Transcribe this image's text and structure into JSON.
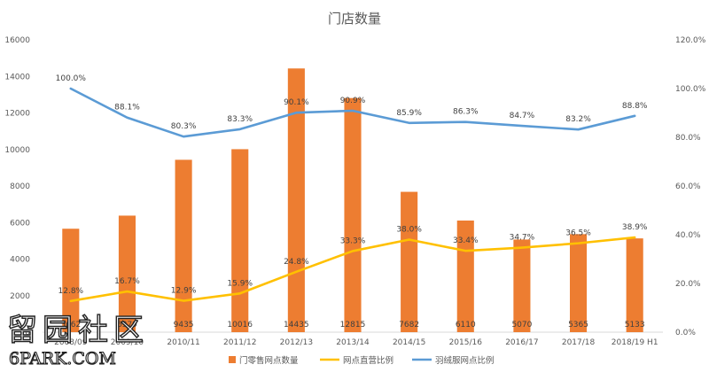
{
  "chart_data": {
    "type": "bar",
    "title": "门店数量",
    "categories": [
      "2008/09",
      "2009/10",
      "2010/11",
      "2011/12",
      "2012/13",
      "2013/14",
      "2014/15",
      "2015/16",
      "2016/17",
      "2017/18",
      "2018/19 H1"
    ],
    "ylim": [
      0,
      16000
    ],
    "y2lim": [
      0,
      1.2
    ],
    "y_ticks": [
      "0",
      "2000",
      "4000",
      "6000",
      "8000",
      "10000",
      "12000",
      "14000",
      "16000"
    ],
    "y2_ticks": [
      "0.0%",
      "20.0%",
      "40.0%",
      "60.0%",
      "80.0%",
      "100.0%",
      "120.0%"
    ],
    "grid": false,
    "legend_position": "bottom",
    "series": [
      {
        "name": "门零售网点数量",
        "type": "bar",
        "axis": "left",
        "color": "#ED7D31",
        "values": [
          5662,
          6379,
          9435,
          10016,
          14435,
          12815,
          7682,
          6110,
          5070,
          5365,
          5133
        ],
        "labels": [
          "5662",
          "6379",
          "9435",
          "10016",
          "14435",
          "12815",
          "7682",
          "6110",
          "5070",
          "5365",
          "5133"
        ]
      },
      {
        "name": "网点直营比例",
        "type": "line",
        "axis": "right",
        "color": "#FFC000",
        "values": [
          0.128,
          0.167,
          0.129,
          0.159,
          0.248,
          0.333,
          0.38,
          0.334,
          0.347,
          0.365,
          0.389
        ],
        "labels": [
          "12.8%",
          "16.7%",
          "12.9%",
          "15.9%",
          "24.8%",
          "33.3%",
          "38.0%",
          "33.4%",
          "34.7%",
          "36.5%",
          "38.9%"
        ]
      },
      {
        "name": "羽绒服网点比例",
        "type": "line",
        "axis": "right",
        "color": "#5B9BD5",
        "values": [
          1.0,
          0.881,
          0.803,
          0.833,
          0.901,
          0.909,
          0.859,
          0.863,
          0.847,
          0.832,
          0.888
        ],
        "labels": [
          "100.0%",
          "88.1%",
          "80.3%",
          "83.3%",
          "90.1%",
          "90.9%",
          "85.9%",
          "86.3%",
          "84.7%",
          "83.2%",
          "88.8%"
        ]
      }
    ]
  },
  "watermark": {
    "line1": "留园社区",
    "line2": "6PARK.COM"
  }
}
